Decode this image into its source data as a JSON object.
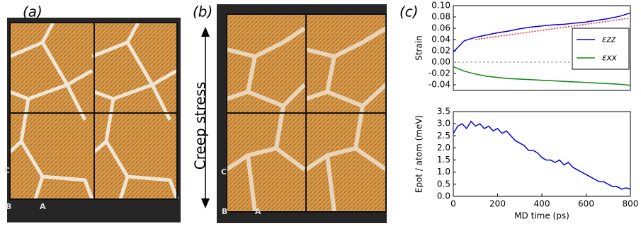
{
  "panels": [
    {
      "label": "(a)",
      "axes": [
        "C",
        "B",
        "A"
      ]
    },
    {
      "label": "(b)",
      "axes": [
        "C",
        "B",
        "A"
      ]
    },
    {
      "label": "(c)"
    }
  ],
  "annotation": "Creep stress",
  "chart_data": [
    {
      "type": "line",
      "ylabel": "Strain",
      "x": [
        0,
        50,
        100,
        150,
        200,
        250,
        300,
        350,
        400,
        450,
        500,
        550,
        600,
        650,
        700,
        750,
        800
      ],
      "series": [
        {
          "name": "εzz",
          "color": "#0000ee",
          "values": [
            0.018,
            0.038,
            0.044,
            0.048,
            0.052,
            0.055,
            0.059,
            0.062,
            0.064,
            0.066,
            0.067,
            0.069,
            0.071,
            0.074,
            0.077,
            0.081,
            0.087
          ]
        },
        {
          "name": "εxx",
          "color": "#118811",
          "values": [
            -0.008,
            -0.016,
            -0.021,
            -0.025,
            -0.027,
            -0.029,
            -0.03,
            -0.031,
            -0.032,
            -0.033,
            -0.034,
            -0.035,
            -0.036,
            -0.037,
            -0.038,
            -0.039,
            -0.041
          ]
        }
      ],
      "fit": {
        "x": [
          100,
          800
        ],
        "values": [
          0.04,
          0.078
        ],
        "color": "#ff2020"
      },
      "reference_line": 0,
      "xlim": [
        0,
        800
      ],
      "ylim": [
        -0.05,
        0.1
      ],
      "yticks": [
        {
          "value": 0.1,
          "label": "0.10"
        },
        0.08,
        0.06,
        0.04,
        0.02,
        {
          "value": 0,
          "label": "0.00"
        },
        -0.02,
        -0.04
      ],
      "legend": "right"
    },
    {
      "type": "line",
      "ylabel": "Epot / atom (meV)",
      "xlabel": "MD time (ps)",
      "x": [
        0,
        20,
        40,
        60,
        80,
        100,
        120,
        140,
        160,
        180,
        200,
        220,
        240,
        260,
        280,
        300,
        320,
        340,
        360,
        380,
        400,
        420,
        440,
        460,
        480,
        500,
        520,
        540,
        560,
        580,
        600,
        620,
        640,
        660,
        680,
        700,
        720,
        740,
        760,
        780,
        800
      ],
      "series": [
        {
          "color": "#0000ee",
          "values": [
            2.6,
            2.9,
            3.0,
            2.8,
            3.1,
            2.9,
            3.0,
            2.8,
            2.9,
            2.7,
            2.8,
            2.6,
            2.7,
            2.5,
            2.3,
            2.2,
            2.1,
            1.9,
            1.9,
            1.8,
            1.6,
            1.5,
            1.5,
            1.4,
            1.5,
            1.3,
            1.4,
            1.2,
            1.1,
            1.0,
            0.9,
            0.8,
            0.7,
            0.6,
            0.6,
            0.5,
            0.4,
            0.4,
            0.3,
            0.35,
            0.3
          ]
        }
      ],
      "xlim": [
        0,
        800
      ],
      "xticks": [
        0,
        200,
        400,
        600,
        800
      ],
      "ylim": [
        0,
        3.5
      ],
      "yticks": [
        {
          "value": 0,
          "label": "0.0"
        },
        0.5,
        {
          "value": 1,
          "label": "1.0"
        },
        1.5,
        {
          "value": 2,
          "label": "2.0"
        },
        2.5,
        {
          "value": 3,
          "label": "3.0"
        },
        3.5
      ]
    }
  ]
}
